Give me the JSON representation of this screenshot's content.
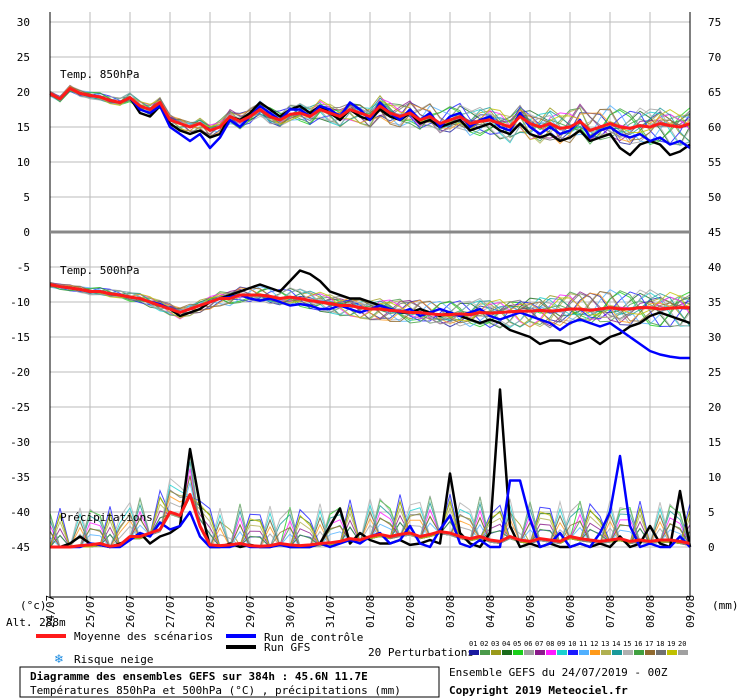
{
  "chart_data": {
    "type": "line",
    "left_axis": {
      "label": "(°c)",
      "ticks": [
        30,
        25,
        20,
        15,
        10,
        5,
        0,
        -5,
        -10,
        -15,
        -20,
        -25,
        -30,
        -35,
        -40,
        -45
      ]
    },
    "right_axis": {
      "label": "(mm)",
      "ticks_upper": [
        75,
        70,
        65,
        60,
        55,
        50,
        45
      ],
      "ticks_lower": [
        40,
        35,
        30,
        25,
        20,
        15,
        10,
        5,
        0
      ]
    },
    "x_ticks": [
      "24/07",
      "25/07",
      "26/07",
      "27/07",
      "28/07",
      "29/07",
      "30/07",
      "31/07",
      "01/08",
      "02/08",
      "03/08",
      "04/08",
      "05/08",
      "06/08",
      "07/08",
      "08/08",
      "09/08"
    ],
    "panels": [
      {
        "label": "Temp. 850hPa",
        "series": [
          {
            "name": "Moyenne des scénarios",
            "color": "#ff1a1a",
            "values": [
              19.8,
              19.0,
              20.5,
              19.8,
              19.5,
              19.3,
              18.8,
              18.5,
              19.2,
              18.0,
              17.5,
              18.5,
              16.0,
              15.5,
              15.0,
              15.5,
              14.5,
              15.0,
              16.5,
              15.8,
              16.5,
              17.5,
              16.5,
              16.0,
              16.8,
              17.0,
              16.5,
              17.5,
              17.0,
              16.5,
              17.5,
              17.0,
              16.5,
              18.0,
              17.0,
              16.5,
              17.0,
              16.0,
              16.5,
              15.5,
              16.0,
              16.5,
              15.5,
              15.8,
              16.0,
              15.5,
              15.0,
              16.5,
              15.5,
              15.0,
              15.5,
              14.8,
              15.0,
              15.8,
              14.5,
              15.0,
              15.5,
              15.0,
              14.8,
              15.2,
              15.0,
              15.5,
              15.2,
              15.0,
              15.5
            ]
          },
          {
            "name": "Run de contrôle",
            "color": "#0000ff",
            "values": [
              19.8,
              19.0,
              20.5,
              19.8,
              19.5,
              19.3,
              18.8,
              18.5,
              19.2,
              17.5,
              17.0,
              18.0,
              15.0,
              14.0,
              13.0,
              14.0,
              12.0,
              13.5,
              16.0,
              15.0,
              16.5,
              18.0,
              17.0,
              16.0,
              17.5,
              17.5,
              16.5,
              18.0,
              17.5,
              16.5,
              18.5,
              17.5,
              16.0,
              18.5,
              17.0,
              16.0,
              17.5,
              16.0,
              17.0,
              15.0,
              16.5,
              17.0,
              15.0,
              16.0,
              16.5,
              15.0,
              14.5,
              17.0,
              15.0,
              14.0,
              15.0,
              14.0,
              14.5,
              16.0,
              13.5,
              14.5,
              15.0,
              14.0,
              13.5,
              14.0,
              13.0,
              13.5,
              12.5,
              13.0,
              12.0
            ]
          },
          {
            "name": "Run GFS",
            "color": "#000000",
            "values": [
              19.8,
              19.0,
              20.5,
              19.8,
              19.5,
              19.3,
              18.8,
              18.5,
              19.2,
              17.0,
              16.5,
              18.0,
              15.5,
              14.5,
              14.0,
              14.5,
              13.5,
              14.0,
              16.5,
              16.0,
              17.0,
              18.5,
              17.5,
              16.5,
              17.5,
              18.0,
              17.0,
              18.0,
              17.0,
              16.0,
              17.5,
              16.5,
              16.0,
              17.5,
              16.5,
              16.0,
              17.0,
              15.5,
              16.0,
              15.0,
              15.5,
              16.0,
              14.5,
              15.0,
              15.5,
              14.5,
              14.0,
              15.5,
              14.0,
              13.5,
              14.0,
              13.0,
              13.5,
              14.5,
              13.0,
              13.5,
              14.0,
              12.0,
              11.0,
              12.5,
              13.0,
              12.5,
              11.0,
              11.5,
              12.5
            ]
          }
        ]
      },
      {
        "label": "Temp. 500hPa",
        "series": [
          {
            "name": "Moyenne des scénarios",
            "color": "#ff1a1a",
            "values": [
              -7.5,
              -7.8,
              -8.0,
              -8.2,
              -8.5,
              -8.5,
              -8.8,
              -9.0,
              -9.3,
              -9.5,
              -10.0,
              -10.5,
              -11.0,
              -11.5,
              -11.0,
              -10.5,
              -10.0,
              -9.5,
              -9.5,
              -9.0,
              -9.0,
              -9.0,
              -9.2,
              -9.5,
              -9.3,
              -9.5,
              -9.8,
              -10.0,
              -10.2,
              -10.5,
              -10.5,
              -10.8,
              -11.0,
              -11.0,
              -11.2,
              -11.3,
              -11.5,
              -11.5,
              -11.7,
              -11.8,
              -11.8,
              -11.7,
              -11.8,
              -11.5,
              -11.6,
              -11.5,
              -11.4,
              -11.3,
              -11.3,
              -11.2,
              -11.3,
              -11.2,
              -11.0,
              -11.0,
              -11.2,
              -11.0,
              -10.8,
              -11.0,
              -11.0,
              -10.8,
              -10.8,
              -11.0,
              -10.9,
              -10.8,
              -10.8
            ]
          },
          {
            "name": "Run de contrôle",
            "color": "#0000ff",
            "values": [
              -7.5,
              -7.8,
              -8.0,
              -8.2,
              -8.5,
              -8.5,
              -8.8,
              -9.0,
              -9.3,
              -9.5,
              -10.0,
              -10.3,
              -11.0,
              -11.5,
              -11.0,
              -10.5,
              -10.0,
              -9.5,
              -9.3,
              -9.0,
              -9.5,
              -9.8,
              -9.5,
              -10.0,
              -10.5,
              -10.3,
              -10.5,
              -11.0,
              -11.0,
              -10.5,
              -11.0,
              -11.5,
              -11.0,
              -10.5,
              -11.0,
              -11.5,
              -11.0,
              -12.0,
              -11.5,
              -11.0,
              -11.5,
              -12.0,
              -11.5,
              -11.0,
              -12.0,
              -12.5,
              -12.0,
              -11.5,
              -12.0,
              -12.5,
              -13.0,
              -14.0,
              -13.0,
              -12.5,
              -13.0,
              -13.5,
              -13.0,
              -14.0,
              -15.0,
              -16.0,
              -17.0,
              -17.5,
              -17.8,
              -18.0,
              -18.0
            ]
          },
          {
            "name": "Run GFS",
            "color": "#000000",
            "values": [
              -7.5,
              -7.8,
              -8.0,
              -8.2,
              -8.5,
              -8.5,
              -8.8,
              -9.0,
              -9.3,
              -9.5,
              -10.0,
              -10.5,
              -11.0,
              -12.0,
              -11.5,
              -11.0,
              -10.0,
              -9.5,
              -9.0,
              -8.5,
              -8.0,
              -7.5,
              -8.0,
              -8.5,
              -7.0,
              -5.5,
              -6.0,
              -7.0,
              -8.5,
              -9.0,
              -9.5,
              -9.5,
              -10.0,
              -10.5,
              -11.0,
              -11.5,
              -11.5,
              -11.0,
              -11.5,
              -12.0,
              -11.5,
              -12.0,
              -12.5,
              -13.0,
              -12.5,
              -13.0,
              -14.0,
              -14.5,
              -15.0,
              -16.0,
              -15.5,
              -15.5,
              -16.0,
              -15.5,
              -15.0,
              -16.0,
              -15.0,
              -14.5,
              -13.5,
              -13.0,
              -12.0,
              -11.5,
              -12.0,
              -12.5,
              -13.0
            ]
          }
        ]
      },
      {
        "label": "Précipitations",
        "series": [
          {
            "name": "Moyenne des scénarios",
            "color": "#ff1a1a",
            "values": [
              0.0,
              0.0,
              0.0,
              0.2,
              0.3,
              0.5,
              0.1,
              0.3,
              1.5,
              1.5,
              2.0,
              2.5,
              5.0,
              4.5,
              7.5,
              3.0,
              0.3,
              0.2,
              0.3,
              0.5,
              0.2,
              0.1,
              0.2,
              0.5,
              0.3,
              0.2,
              0.3,
              0.5,
              0.6,
              0.8,
              1.2,
              1.0,
              1.5,
              1.8,
              1.5,
              1.8,
              2.0,
              1.5,
              1.8,
              2.2,
              2.0,
              1.5,
              1.2,
              1.5,
              1.0,
              0.8,
              1.5,
              1.0,
              0.8,
              1.2,
              1.0,
              0.8,
              1.5,
              1.2,
              1.0,
              0.8,
              1.0,
              1.2,
              0.8,
              1.0,
              0.8,
              1.0,
              1.0,
              0.8,
              0.5
            ]
          },
          {
            "name": "Run de contrôle",
            "color": "#0000ff",
            "values": [
              0.0,
              0.0,
              0.0,
              0.0,
              0.5,
              0.3,
              0.0,
              0.0,
              1.0,
              2.0,
              1.5,
              3.5,
              2.5,
              3.0,
              5.0,
              1.5,
              0.0,
              0.0,
              0.0,
              0.5,
              0.0,
              0.0,
              0.0,
              0.3,
              0.0,
              0.0,
              0.0,
              0.5,
              0.0,
              0.5,
              1.0,
              0.5,
              1.5,
              2.0,
              0.5,
              1.0,
              3.0,
              0.5,
              0.0,
              2.5,
              4.5,
              0.5,
              0.0,
              1.0,
              0.0,
              0.0,
              9.5,
              9.5,
              4.0,
              0.0,
              0.5,
              2.0,
              0.0,
              0.5,
              0.0,
              2.0,
              5.0,
              13.0,
              3.0,
              0.0,
              0.5,
              0.0,
              0.0,
              1.5,
              0.0
            ]
          },
          {
            "name": "Run GFS",
            "color": "#000000",
            "values": [
              0.0,
              0.0,
              0.5,
              1.5,
              0.5,
              0.3,
              0.0,
              0.5,
              1.0,
              2.0,
              0.5,
              1.5,
              2.0,
              3.0,
              14.0,
              6.0,
              0.0,
              0.0,
              0.5,
              0.0,
              0.3,
              0.0,
              0.0,
              0.5,
              0.0,
              0.0,
              0.0,
              0.5,
              3.0,
              5.5,
              0.5,
              2.0,
              1.0,
              0.5,
              0.5,
              1.0,
              0.3,
              0.5,
              1.0,
              0.5,
              10.5,
              2.0,
              0.5,
              0.0,
              2.0,
              22.5,
              3.0,
              0.0,
              0.5,
              0.0,
              0.5,
              0.0,
              0.0,
              0.5,
              0.0,
              0.5,
              0.0,
              1.5,
              0.0,
              0.5,
              3.0,
              0.5,
              0.0,
              8.0,
              0.0
            ]
          }
        ]
      }
    ]
  },
  "legend": {
    "mean": "Moyenne des scénarios",
    "control": "Run de contrôle",
    "gfs": "Run GFS",
    "snow": "Risque neige",
    "perturbations": "20 Perturbations",
    "alt": "Alt. 288m",
    "perturbation_numbers": [
      "01",
      "02",
      "03",
      "04",
      "05",
      "06",
      "07",
      "08",
      "09",
      "10",
      "11",
      "12",
      "13",
      "14",
      "15",
      "16",
      "17",
      "18",
      "19",
      "20"
    ]
  },
  "colors": {
    "mean": "#ff1a1a",
    "control": "#0000ff",
    "gfs": "#000000",
    "perturbations": [
      "#1a1aa0",
      "#4a9a4a",
      "#9a9a1a",
      "#1a6a1a",
      "#1ad01a",
      "#a0a0a0",
      "#8a1a8a",
      "#ff1aff",
      "#1ad0d0",
      "#1a1aff",
      "#50b0ff",
      "#ff9a1a",
      "#b0b050",
      "#1a9a9a",
      "#b0b0b0",
      "#40a040",
      "#906a30",
      "#707070",
      "#c0c000",
      "#a0a0a0"
    ]
  },
  "footer": {
    "title": "Diagramme des ensembles GEFS sur 384h : 45.6N 11.7E",
    "subtitle": "Températures 850hPa et 500hPa (°C) , précipitations (mm)",
    "run_info": "Ensemble GEFS du 24/07/2019 - 00Z",
    "copyright": "Copyright 2019 Meteociel.fr"
  }
}
